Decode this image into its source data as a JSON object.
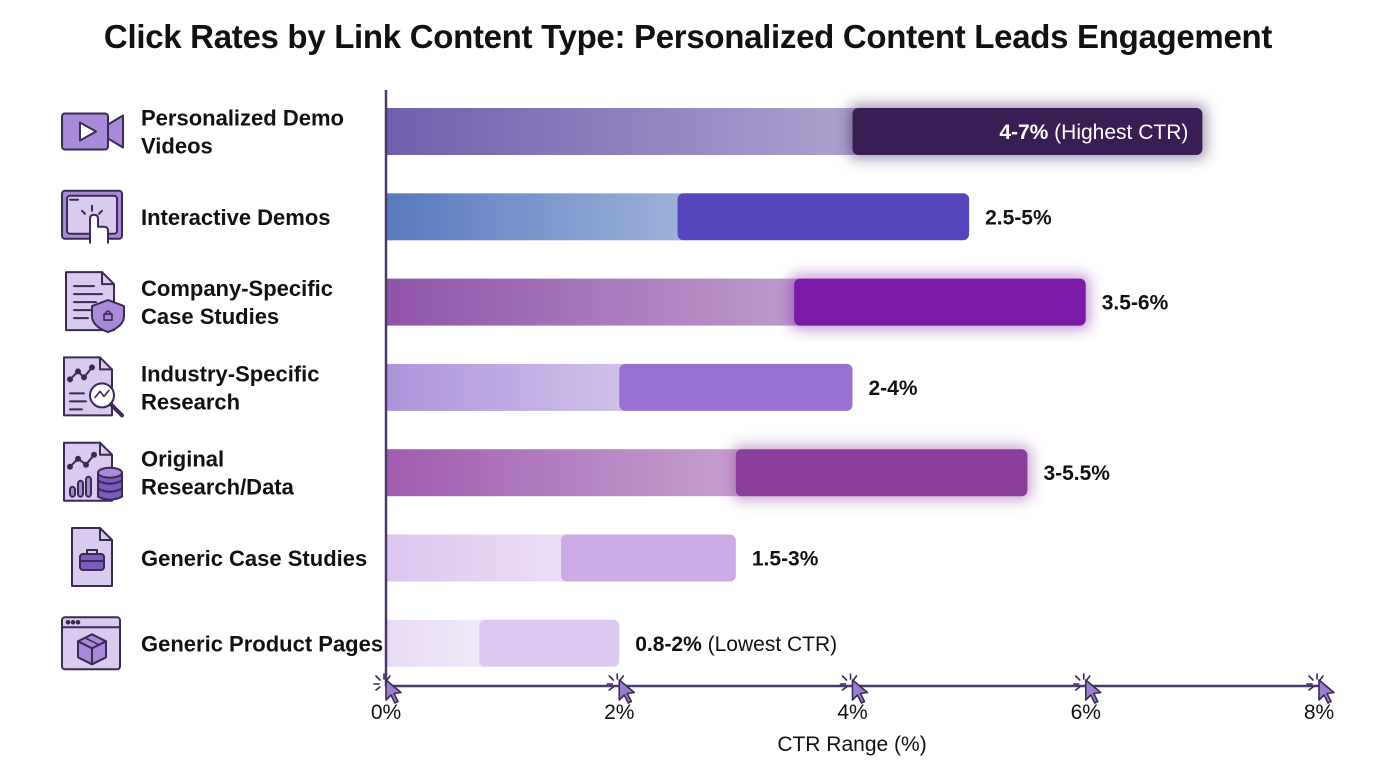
{
  "chart_data": {
    "type": "bar",
    "title": "Click Rates by Link Content Type: Personalized Content Leads Engagement",
    "xlabel": "CTR Range (%)",
    "ylabel": "",
    "xlim": [
      0,
      8
    ],
    "xticks": [
      0,
      2,
      4,
      6,
      8
    ],
    "xtick_labels": [
      "0%",
      "2%",
      "4%",
      "6%",
      "8%"
    ],
    "orientation": "horizontal",
    "grid": false,
    "categories": [
      {
        "label_lines": [
          "Personalized Demo",
          "Videos"
        ],
        "icon": "video-camera-icon"
      },
      {
        "label_lines": [
          "Interactive Demos"
        ],
        "icon": "touch-screen-icon"
      },
      {
        "label_lines": [
          "Company-Specific",
          "Case Studies"
        ],
        "icon": "document-shield-icon"
      },
      {
        "label_lines": [
          "Industry-Specific",
          "Research"
        ],
        "icon": "document-magnifier-icon"
      },
      {
        "label_lines": [
          "Original",
          "Research/Data"
        ],
        "icon": "chart-database-icon"
      },
      {
        "label_lines": [
          "Generic Case Studies"
        ],
        "icon": "document-briefcase-icon"
      },
      {
        "label_lines": [
          "Generic Product Pages"
        ],
        "icon": "browser-box-icon"
      }
    ],
    "ranges": [
      {
        "low": 4,
        "high": 7,
        "label": "4-7%",
        "note": " (Highest CTR)",
        "color": "#3a1d54",
        "fade": "#6a56a8",
        "glow": true,
        "label_inside": true
      },
      {
        "low": 2.5,
        "high": 5,
        "label": "2.5-5%",
        "note": "",
        "color": "#5546bd",
        "fade": "#4e73bb",
        "glow": false,
        "label_inside": false
      },
      {
        "low": 3.5,
        "high": 6,
        "label": "3.5-6%",
        "note": "",
        "color": "#7a1aa6",
        "fade": "#8a4aa4",
        "glow": true,
        "label_inside": false
      },
      {
        "low": 2,
        "high": 4,
        "label": "2-4%",
        "note": "",
        "color": "#9b70d3",
        "fade": "#a88ed9",
        "glow": false,
        "label_inside": false
      },
      {
        "low": 3,
        "high": 5.5,
        "label": "3-5.5%",
        "note": "",
        "color": "#8a3f9c",
        "fade": "#9a54ab",
        "glow": true,
        "label_inside": false
      },
      {
        "low": 1.5,
        "high": 3,
        "label": "1.5-3%",
        "note": "",
        "color": "#cda9e6",
        "fade": "#dcc3ef",
        "glow": false,
        "label_inside": false
      },
      {
        "low": 0.8,
        "high": 2,
        "label": "0.8-2%",
        "note": " (Lowest CTR)",
        "color": "#ddc8f0",
        "fade": "#e6d8f5",
        "glow": false,
        "label_inside": false
      }
    ]
  }
}
